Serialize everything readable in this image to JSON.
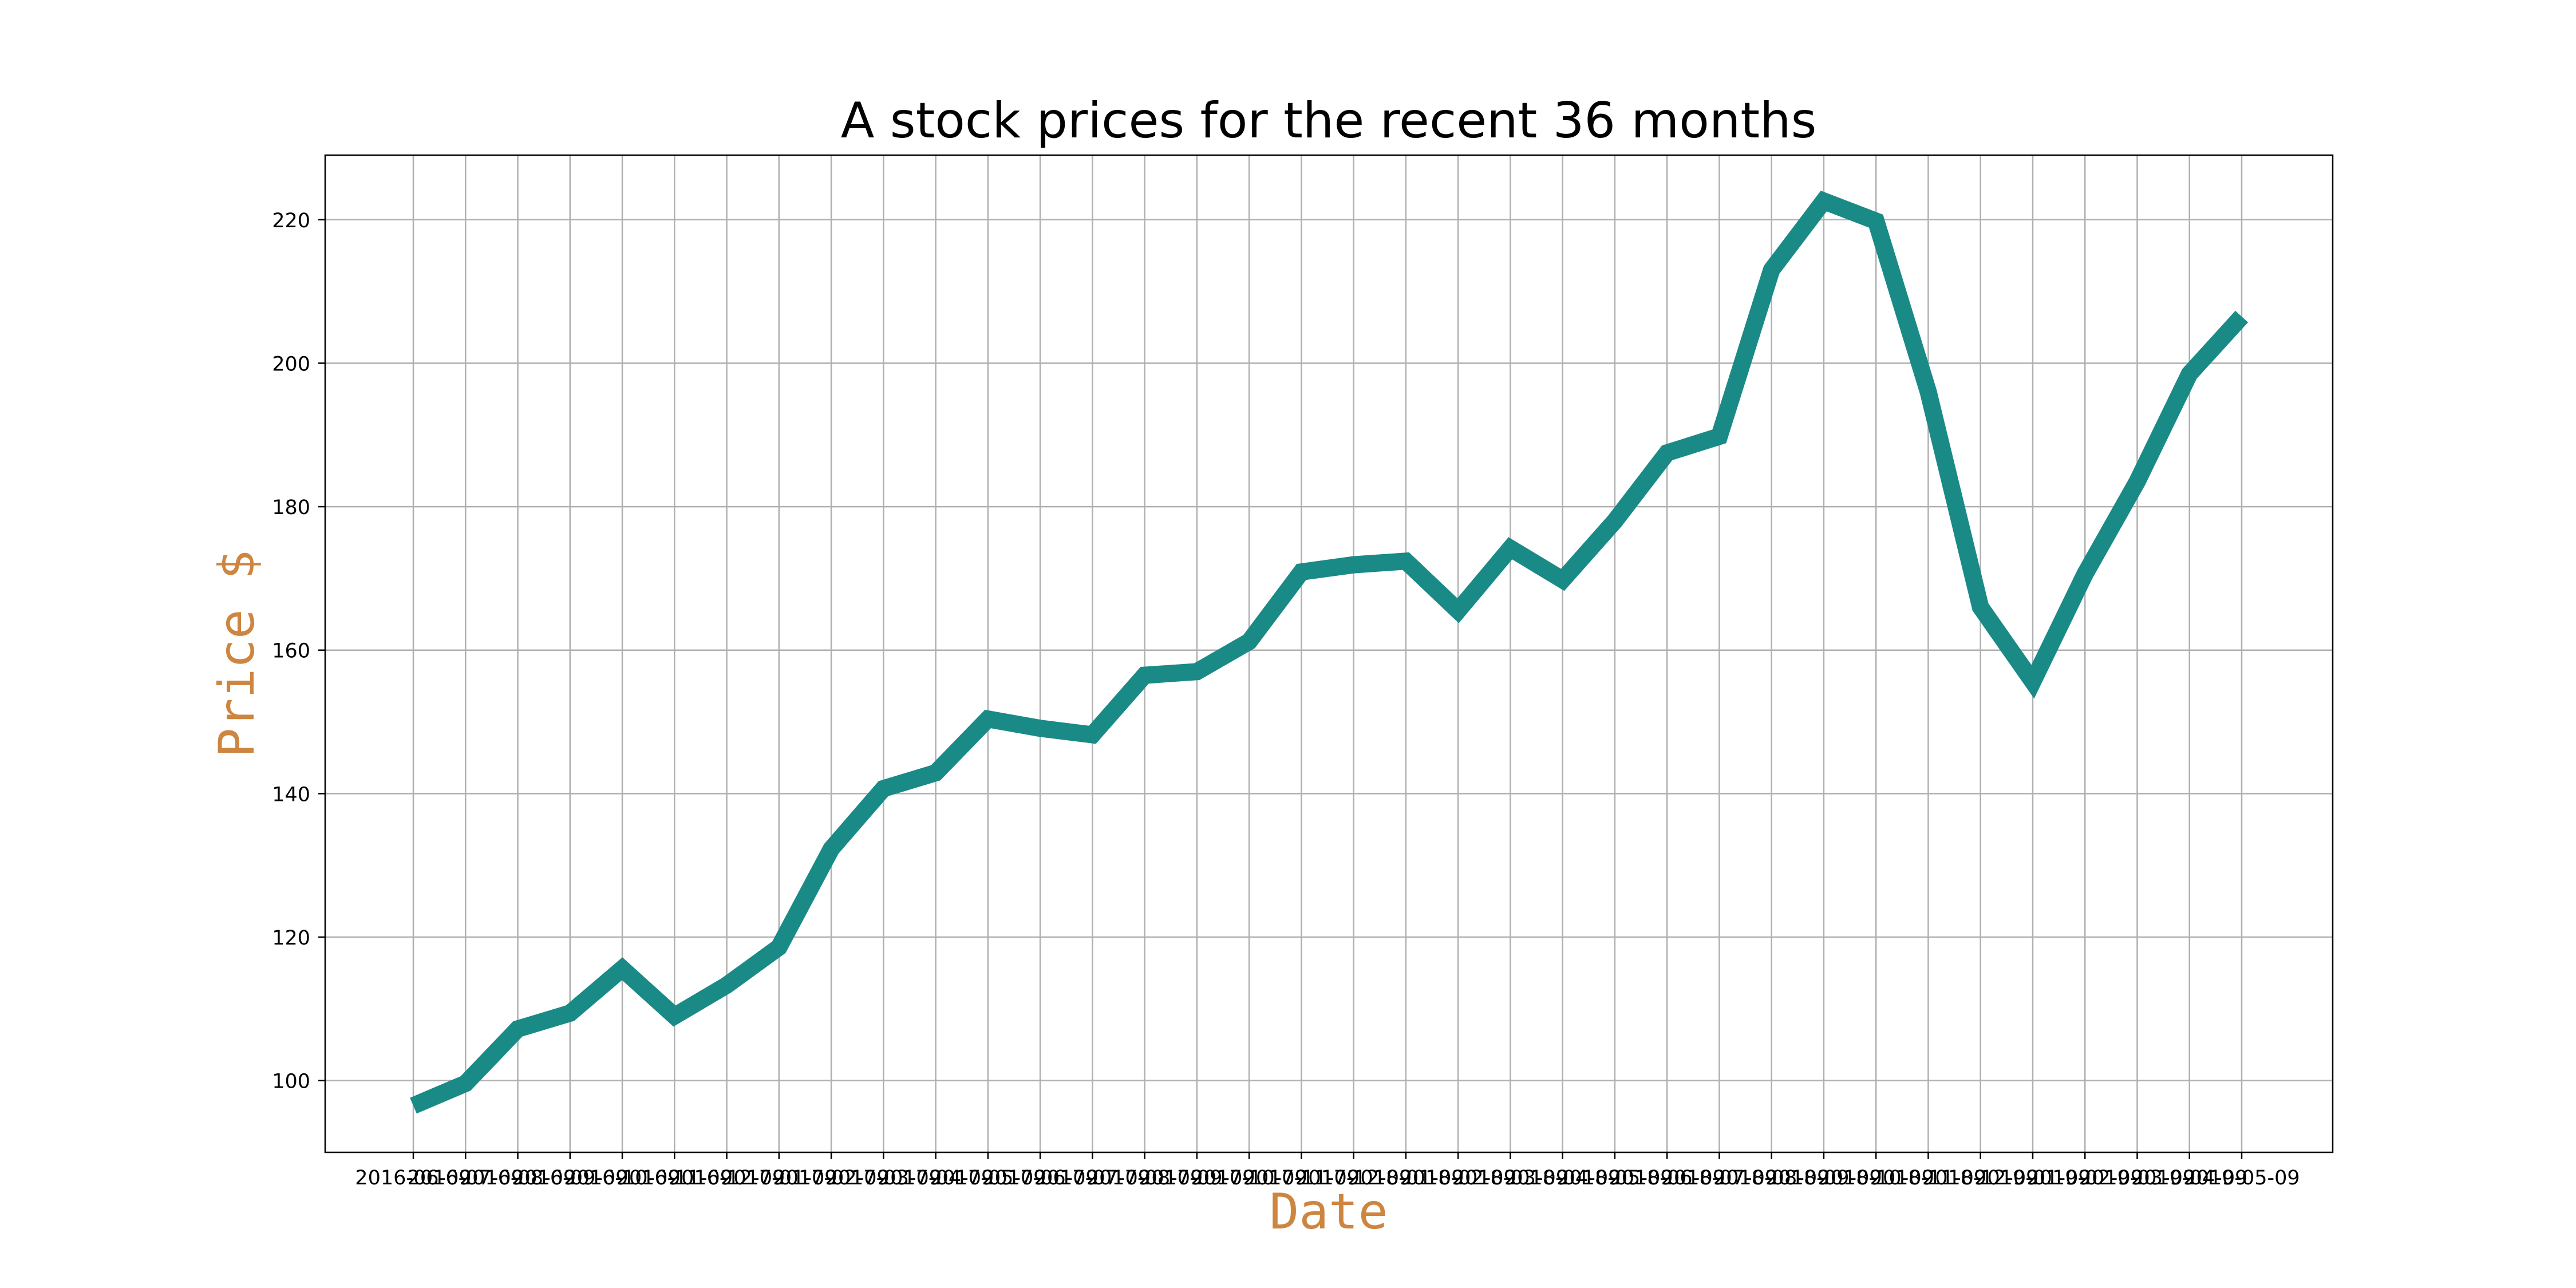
{
  "chart_data": {
    "type": "line",
    "title": "A stock prices for the recent 36 months",
    "xlabel": "Date",
    "ylabel": "Price $",
    "grid": true,
    "legend": "none",
    "ylim": [
      90,
      229
    ],
    "yticks": [
      100,
      120,
      140,
      160,
      180,
      200,
      220
    ],
    "x": [
      "2016-06-09",
      "2016-07-09",
      "2016-08-09",
      "2016-09-09",
      "2016-10-09",
      "2016-11-09",
      "2016-12-09",
      "2017-01-09",
      "2017-02-09",
      "2017-03-09",
      "2017-04-09",
      "2017-05-09",
      "2017-06-09",
      "2017-07-09",
      "2017-08-09",
      "2017-09-09",
      "2017-10-09",
      "2017-11-09",
      "2017-12-09",
      "2018-01-09",
      "2018-02-09",
      "2018-03-09",
      "2018-04-09",
      "2018-05-09",
      "2018-06-09",
      "2018-07-09",
      "2018-08-09",
      "2018-09-09",
      "2018-10-09",
      "2018-11-09",
      "2018-12-09",
      "2019-01-09",
      "2019-02-09",
      "2019-03-09",
      "2019-04-09",
      "2019-05-09"
    ],
    "series": [
      {
        "values": [
          96.5,
          99.6,
          107.2,
          109.4,
          115.6,
          109.0,
          113.3,
          118.6,
          132.3,
          140.7,
          142.9,
          150.4,
          149.1,
          148.2,
          156.5,
          157.0,
          161.2,
          170.9,
          171.9,
          172.4,
          165.5,
          174.2,
          169.8,
          178.0,
          187.5,
          189.8,
          213.0,
          222.6,
          219.8,
          196.0,
          166.0,
          155.6,
          170.6,
          183.5,
          198.5,
          206.5
        ]
      }
    ],
    "colors": {
      "line": "#1a8a87",
      "axis_label": "#cd853f",
      "grid": "#b0b0b0",
      "frame": "#000000",
      "text": "#000000"
    }
  }
}
